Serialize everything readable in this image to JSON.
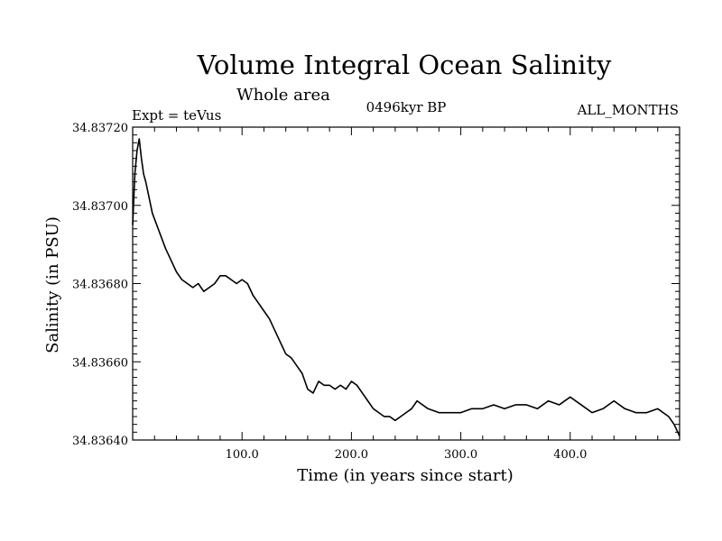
{
  "chart_data": {
    "type": "line",
    "title": "Volume Integral Ocean Salinity",
    "subtitle": "Whole area",
    "experiment": "Expt = teVus",
    "period": "0496kyr BP",
    "months": "ALL_MONTHS",
    "xlabel": "Time (in years since start)",
    "ylabel": "Salinity (in PSU)",
    "xlim": [
      0,
      500
    ],
    "ylim": [
      34.8364,
      34.8372
    ],
    "x_ticks": [
      100,
      200,
      300,
      400
    ],
    "x_tick_labels": [
      "100.0",
      "200.0",
      "300.0",
      "400.0"
    ],
    "y_ticks": [
      34.8364,
      34.8366,
      34.8368,
      34.837,
      34.8372
    ],
    "y_tick_labels": [
      "34.83640",
      "34.83660",
      "34.83680",
      "34.83700",
      "34.83720"
    ],
    "grid": false,
    "series": [
      {
        "values_x": [
          0,
          2,
          4,
          6,
          8,
          10,
          12,
          15,
          18,
          22,
          26,
          30,
          35,
          40,
          45,
          50,
          55,
          60,
          65,
          70,
          75,
          80,
          85,
          90,
          95,
          100,
          105,
          110,
          115,
          120,
          125,
          130,
          135,
          140,
          145,
          150,
          155,
          160,
          165,
          170,
          175,
          180,
          185,
          190,
          195,
          200,
          205,
          210,
          215,
          220,
          225,
          230,
          235,
          240,
          245,
          250,
          255,
          260,
          270,
          280,
          290,
          300,
          310,
          320,
          330,
          340,
          350,
          360,
          370,
          380,
          390,
          400,
          410,
          420,
          430,
          440,
          450,
          460,
          470,
          480,
          490,
          495,
          500
        ],
        "values_y": [
          34.83695,
          34.83708,
          34.83714,
          34.83717,
          34.83712,
          34.83708,
          34.83706,
          34.83702,
          34.83698,
          34.83695,
          34.83692,
          34.83689,
          34.83686,
          34.83683,
          34.83681,
          34.8368,
          34.83679,
          34.8368,
          34.83678,
          34.83679,
          34.8368,
          34.83682,
          34.83682,
          34.83681,
          34.8368,
          34.83681,
          34.8368,
          34.83677,
          34.83675,
          34.83673,
          34.83671,
          34.83668,
          34.83665,
          34.83662,
          34.83661,
          34.83659,
          34.83657,
          34.83653,
          34.83652,
          34.83655,
          34.83654,
          34.83654,
          34.83653,
          34.83654,
          34.83653,
          34.83655,
          34.83654,
          34.83652,
          34.8365,
          34.83648,
          34.83647,
          34.83646,
          34.83646,
          34.83645,
          34.83646,
          34.83647,
          34.83648,
          34.8365,
          34.83648,
          34.83647,
          34.83647,
          34.83647,
          34.83648,
          34.83648,
          34.83649,
          34.83648,
          34.83649,
          34.83649,
          34.83648,
          34.8365,
          34.83649,
          34.83651,
          34.83649,
          34.83647,
          34.83648,
          34.8365,
          34.83648,
          34.83647,
          34.83647,
          34.83648,
          34.83646,
          34.83644,
          34.83641
        ]
      }
    ]
  }
}
